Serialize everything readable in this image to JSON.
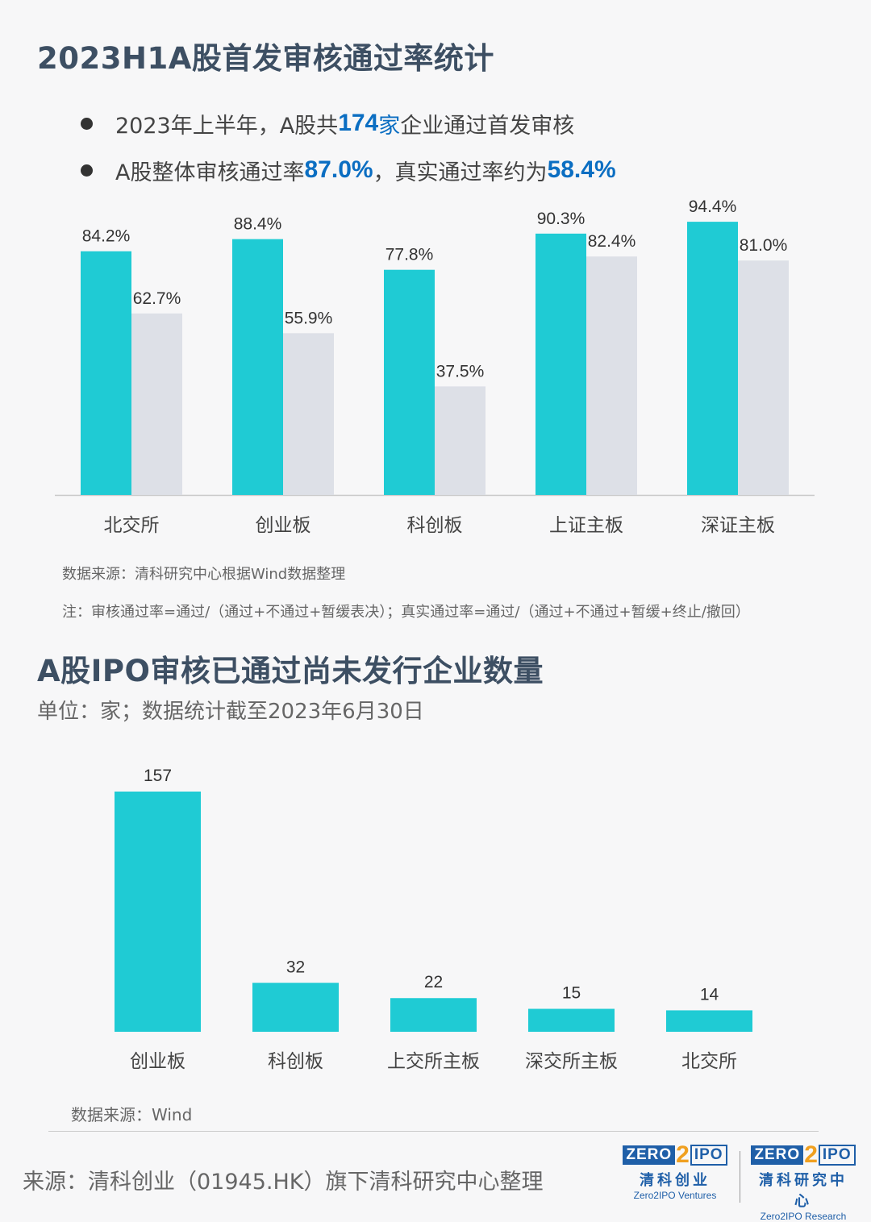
{
  "section1": {
    "title": "2023H1A股首发审核通过率统计",
    "bullet1": {
      "pre": "2023年上半年，A股共",
      "num": "174",
      "unit": "家",
      "post": "企业通过首发审核"
    },
    "bullet2": {
      "pre": "A股整体审核通过率",
      "num1": "87.0%",
      "mid": "，真实通过率约为",
      "num2": "58.4%"
    },
    "source": "数据来源：清科研究中心根据Wind数据整理",
    "note": "注：审核通过率=通过/（通过+不通过+暂缓表决）；真实通过率=通过/（通过+不通过+暂缓+终止/撤回）"
  },
  "section2": {
    "title": "A股IPO审核已通过尚未发行企业数量",
    "subtitle": "单位：家；数据统计截至2023年6月30日",
    "source": "数据来源：Wind"
  },
  "footer": {
    "text": "来源：清科创业（01945.HK）旗下清科研究中心整理"
  },
  "logos": [
    {
      "zero": "ZERO",
      "two": "2",
      "ipo": "IPO",
      "cn": "清科创业",
      "en": "Zero2IPO Ventures"
    },
    {
      "zero": "ZERO",
      "two": "2",
      "ipo": "IPO",
      "cn": "清科研究中心",
      "en": "Zero2IPO Research"
    }
  ],
  "colors": {
    "teal": "#1fcbd4",
    "gray": "#dde0e7",
    "title": "#3d4f63",
    "highlight": "#0b6ec2"
  },
  "chart_data": [
    {
      "type": "bar",
      "categories": [
        "北交所",
        "创业板",
        "科创板",
        "上证主板",
        "深证主板"
      ],
      "series": [
        {
          "values": [
            84.2,
            88.4,
            77.8,
            90.3,
            94.4
          ],
          "labels": [
            "84.2%",
            "88.4%",
            "77.8%",
            "90.3%",
            "94.4%"
          ],
          "color": "#1fcbd4"
        },
        {
          "values": [
            62.7,
            55.9,
            37.5,
            82.4,
            81.0
          ],
          "labels": [
            "62.7%",
            "55.9%",
            "37.5%",
            "82.4%",
            "81.0%"
          ],
          "color": "#dde0e7"
        }
      ],
      "ylim": [
        0,
        100
      ],
      "grid": false
    },
    {
      "type": "bar",
      "categories": [
        "创业板",
        "科创板",
        "上交所主板",
        "深交所主板",
        "北交所"
      ],
      "values": [
        157,
        32,
        22,
        15,
        14
      ],
      "color": "#1fcbd4",
      "grid": false
    }
  ]
}
